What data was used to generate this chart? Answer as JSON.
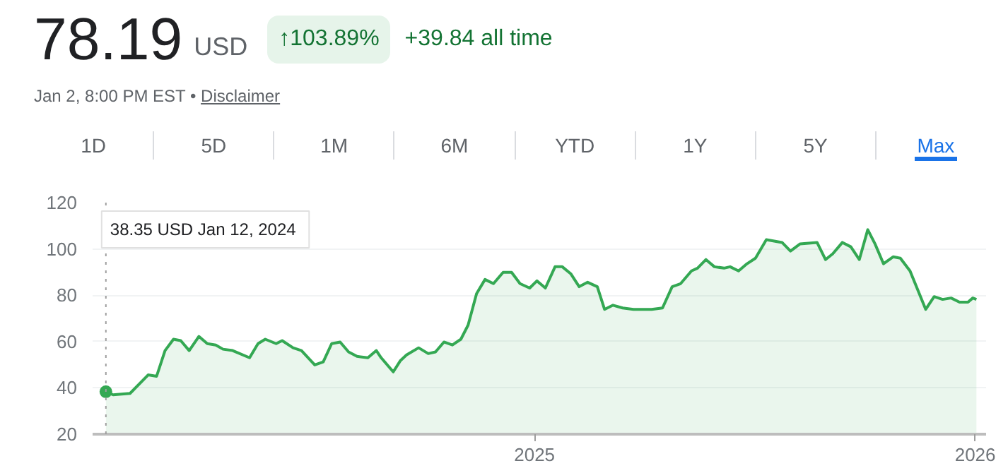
{
  "chart_data": {
    "type": "area",
    "title": "78.19",
    "annotations": [
      "USD",
      "↑103.89%",
      "+39.84 all time",
      "Jan 2, 8:00 PM EST • ",
      "Disclaimer",
      "1D",
      "5D",
      "1M",
      "6M",
      "YTD",
      "1Y",
      "5Y",
      "Max",
      "38.35 USD  Jan 12, 2024"
    ],
    "x": [
      "2024-01-12",
      "2024-01-18",
      "2024-02-01",
      "2024-02-16",
      "2024-02-23",
      "2024-03-01",
      "2024-03-08",
      "2024-03-14",
      "2024-03-21",
      "2024-03-29",
      "2024-04-05",
      "2024-04-12",
      "2024-04-18",
      "2024-04-26",
      "2024-05-10",
      "2024-05-17",
      "2024-05-23",
      "2024-06-01",
      "2024-06-06",
      "2024-06-15",
      "2024-06-22",
      "2024-07-03",
      "2024-07-10",
      "2024-07-17",
      "2024-07-24",
      "2024-07-31",
      "2024-08-07",
      "2024-08-16",
      "2024-08-23",
      "2024-08-27",
      "2024-09-06",
      "2024-09-12",
      "2024-09-17",
      "2024-09-27",
      "2024-10-05",
      "2024-10-11",
      "2024-10-18",
      "2024-10-25",
      "2024-11-01",
      "2024-11-07",
      "2024-11-14",
      "2024-11-21",
      "2024-11-28",
      "2024-12-06",
      "2024-12-13",
      "2024-12-20",
      "2024-12-28",
      "2025-01-03",
      "2025-01-10",
      "2025-01-18",
      "2025-01-24",
      "2025-01-31",
      "2025-02-07",
      "2025-02-14",
      "2025-02-22",
      "2025-02-28",
      "2025-03-07",
      "2025-03-15",
      "2025-03-24",
      "2025-04-08",
      "2025-04-17",
      "2025-04-25",
      "2025-05-02",
      "2025-05-11",
      "2025-05-16",
      "2025-05-23",
      "2025-05-30",
      "2025-06-07",
      "2025-06-12",
      "2025-06-19",
      "2025-06-26",
      "2025-07-03",
      "2025-07-12",
      "2025-07-25",
      "2025-08-01",
      "2025-08-09",
      "2025-08-23",
      "2025-08-30",
      "2025-09-05",
      "2025-09-13",
      "2025-09-20",
      "2025-09-27",
      "2025-10-04",
      "2025-10-10",
      "2025-10-17",
      "2025-10-25",
      "2025-10-31",
      "2025-11-08",
      "2025-11-21",
      "2025-11-28",
      "2025-12-05",
      "2025-12-12",
      "2025-12-19",
      "2025-12-26",
      "2025-12-30",
      "2026-01-02"
    ],
    "series": [
      {
        "color": "#34a853",
        "values": [
          38.35,
          37.0,
          37.6,
          45.6,
          45.0,
          56.1,
          61.0,
          60.4,
          56.1,
          62.2,
          59.1,
          58.5,
          56.7,
          56.1,
          53.0,
          59.1,
          61.0,
          59.1,
          60.4,
          57.3,
          56.1,
          49.9,
          51.2,
          59.1,
          59.8,
          55.5,
          53.6,
          53.0,
          56.1,
          53.0,
          46.9,
          51.8,
          54.2,
          57.3,
          54.8,
          55.5,
          59.8,
          58.5,
          61.0,
          67.1,
          80.7,
          86.8,
          85.0,
          89.9,
          89.9,
          85.0,
          83.1,
          86.2,
          83.1,
          92.3,
          92.3,
          89.3,
          83.7,
          85.6,
          83.7,
          73.9,
          75.7,
          74.5,
          73.9,
          73.9,
          74.5,
          83.7,
          85.0,
          90.5,
          91.7,
          95.4,
          92.3,
          91.7,
          92.3,
          90.5,
          93.6,
          96.0,
          104.0,
          102.8,
          99.1,
          102.2,
          102.8,
          95.4,
          97.9,
          102.8,
          100.9,
          95.4,
          108.3,
          102.2,
          93.6,
          96.6,
          96.0,
          90.5,
          73.9,
          79.4,
          78.2,
          78.8,
          77.0,
          77.0,
          78.8,
          78.19
        ]
      }
    ],
    "xlim": [
      "2024-01-01",
      "2026-01-10"
    ],
    "xticks": [
      {
        "value": "2025",
        "label": "2025"
      },
      {
        "value": "2026",
        "label": "2026"
      }
    ],
    "ylim": [
      20,
      120
    ],
    "yticks": [
      20,
      40,
      60,
      80,
      100,
      120
    ],
    "grid": "y",
    "marker": "none",
    "line_style": "solid",
    "ref_lines": [
      {
        "axis": "x",
        "value": "2024-01-12",
        "label": null,
        "color": "#9e9e9e",
        "line_style": "dotted"
      }
    ]
  }
}
